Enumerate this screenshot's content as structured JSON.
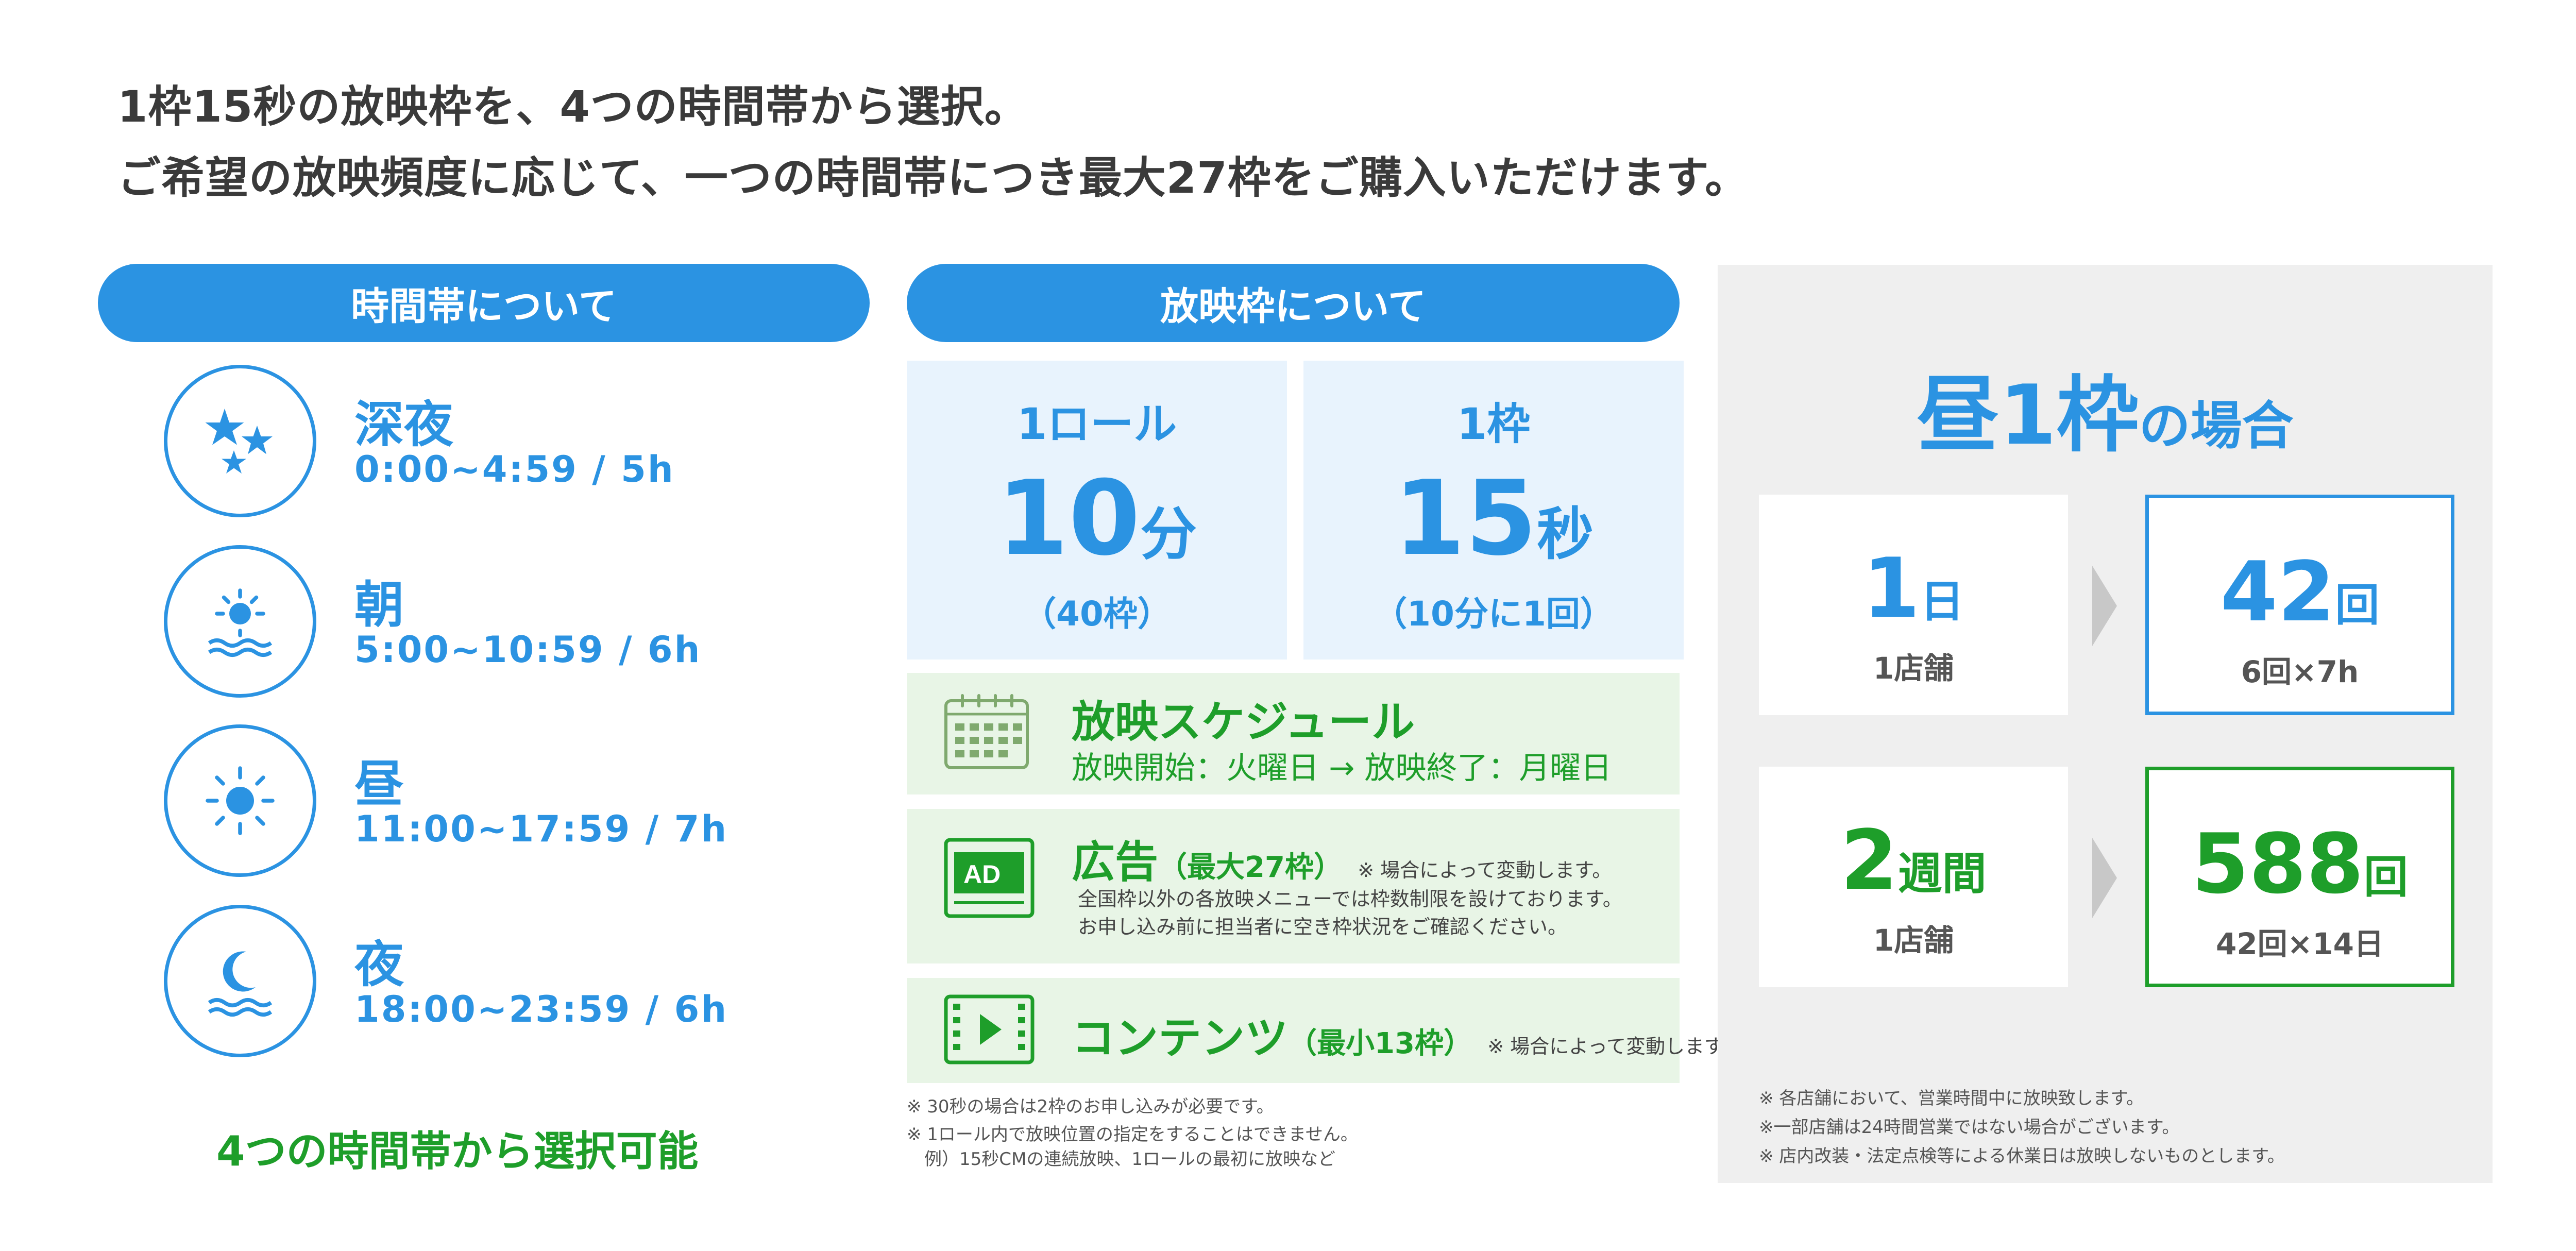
{
  "headline": {
    "line1": "1枠15秒の放映枠を、4つの時間帯から選択。",
    "line2": "ご希望の放映頻度に応じて、一つの時間帯につき最大27枠をご購入いただけます。"
  },
  "time_section": {
    "header": "時間帯について",
    "bands": [
      {
        "name": "深夜",
        "time": "0:00~4:59 / 5h",
        "icon": "stars-icon"
      },
      {
        "name": "朝",
        "time": "5:00~10:59 / 6h",
        "icon": "sunrise-icon"
      },
      {
        "name": "昼",
        "time": "11:00~17:59 / 7h",
        "icon": "sun-icon"
      },
      {
        "name": "夜",
        "time": "18:00~23:59 / 6h",
        "icon": "moon-icon"
      }
    ],
    "footer": "4つの時間帯から選択可能"
  },
  "slot_section": {
    "header": "放映枠について",
    "roll": {
      "title": "1ロール",
      "value": "10",
      "unit": "分",
      "note": "（40枠）"
    },
    "frame": {
      "title": "1枠",
      "value": "15",
      "unit": "秒",
      "note": "（10分に1回）"
    },
    "schedule": {
      "title": "放映スケジュール",
      "line": "放映開始：火曜日 → 放映終了：月曜日",
      "icon": "calendar-icon"
    },
    "ad": {
      "title": "広告",
      "sub": "（最大27枠）",
      "note": "※ 場合によって変動します。",
      "desc1": "全国枠以外の各放映メニューでは枠数制限を設けております。",
      "desc2": "お申し込み前に担当者に空き枠状況をご確認ください。",
      "icon": "ad-icon",
      "icon_text": "AD"
    },
    "content": {
      "title": "コンテンツ",
      "sub": "（最小13枠）",
      "note": "※ 場合によって変動します。",
      "icon": "video-icon"
    },
    "footnotes": [
      "※ 30秒の場合は2枠のお申し込みが必要です。",
      "※ 1ロール内で放映位置の指定をすることはできません。",
      "　例）15秒CMの連続放映、1ロールの最初に放映など"
    ]
  },
  "right_panel": {
    "title_big": "昼1枠",
    "title_small": "の場合",
    "day": {
      "value": "1",
      "unit": "日",
      "label": "1店舗"
    },
    "day_result": {
      "value": "42",
      "unit": "回",
      "label": "6回×7h"
    },
    "week": {
      "value": "2",
      "unit": "週間",
      "label": "1店舗"
    },
    "week_result": {
      "value": "588",
      "unit": "回",
      "label": "42回×14日"
    },
    "notes": [
      "※ 各店舗において、営業時間中に放映致します。",
      "※一部店舗は24時間営業ではない場合がございます。",
      "※ 店内改装・法定点検等による休業日は放映しないものとします。"
    ]
  },
  "colors": {
    "blue": "#2b93e2",
    "green": "#1e9e2a",
    "light_blue_bg": "#e8f3fd",
    "light_green_bg": "#e8f5e6",
    "panel_bg": "#efefef"
  }
}
